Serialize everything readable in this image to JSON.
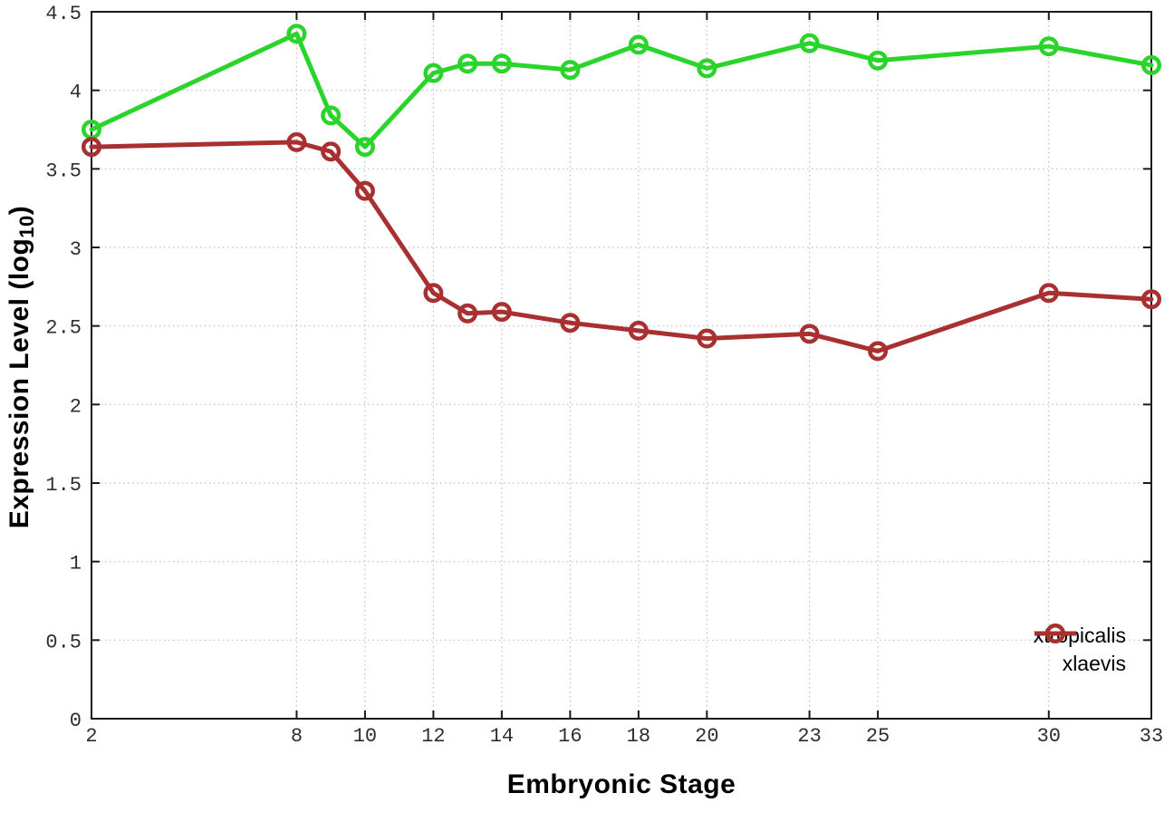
{
  "chart_data": {
    "type": "line",
    "title": "",
    "xlabel": "Embryonic Stage",
    "ylabel": "Expression Level (log10)",
    "xlim": [
      2,
      33
    ],
    "ylim": [
      0,
      4.5
    ],
    "x_ticks": [
      2,
      8,
      10,
      12,
      14,
      16,
      18,
      20,
      23,
      25,
      30,
      33
    ],
    "x_tick_labels": [
      "2",
      "8",
      "10",
      "12",
      "14",
      "16",
      "18",
      "20",
      "23",
      "25",
      "30",
      "33"
    ],
    "y_ticks": [
      0,
      0.5,
      1,
      1.5,
      2,
      2.5,
      3,
      3.5,
      4,
      4.5
    ],
    "y_tick_labels": [
      "0",
      "0.5",
      "1",
      "1.5",
      "2",
      "2.5",
      "3",
      "3.5",
      "4",
      "4.5"
    ],
    "grid": true,
    "legend_position": "inside-bottom-right",
    "marker": "open-circle",
    "x": [
      2,
      8,
      9,
      10,
      12,
      13,
      14,
      16,
      18,
      20,
      23,
      25,
      30,
      33
    ],
    "series": [
      {
        "name": "xtropicalis",
        "color": "#2bd42b",
        "values": [
          3.75,
          4.36,
          3.84,
          3.64,
          4.11,
          4.17,
          4.17,
          4.13,
          4.29,
          4.14,
          4.3,
          4.19,
          4.28,
          4.16
        ]
      },
      {
        "name": "xlaevis",
        "color": "#a93030",
        "values": [
          3.64,
          3.67,
          3.61,
          3.36,
          2.71,
          2.58,
          2.59,
          2.52,
          2.47,
          2.42,
          2.45,
          2.34,
          2.71,
          2.67
        ]
      }
    ],
    "colors": {
      "grid": "#bfbfbf",
      "axis": "#1a1a1a",
      "tick_text": "#2e2e2e",
      "background": "#ffffff"
    }
  },
  "labels": {
    "x_title": "Embryonic Stage",
    "y_title_prefix": "Expression Level (log",
    "y_title_sub": "10",
    "y_title_suffix": ")"
  }
}
